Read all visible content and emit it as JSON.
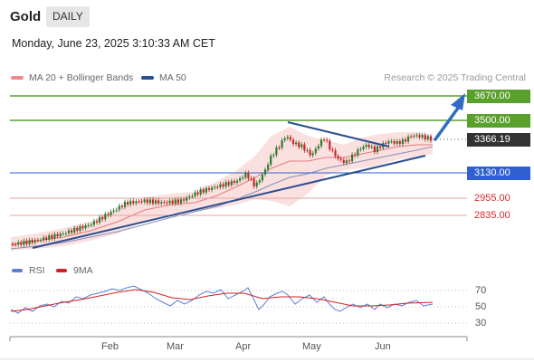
{
  "header": {
    "title": "Gold",
    "timeframe": "DAILY"
  },
  "datetime": "Monday, June 23, 2025 3:10:33 AM CET",
  "legend": {
    "ma20": {
      "label": "MA 20 + Bollinger Bands",
      "color": "#f08a8a"
    },
    "ma50": {
      "label": "MA 50",
      "color": "#2b4f8f"
    }
  },
  "research": "Research © 2025 Trading Central",
  "levels": {
    "r2": "3670.00",
    "r1": "3500.00",
    "last": "3366.19",
    "s1": "3130.00",
    "s2": "2955.00",
    "s3": "2835.00"
  },
  "rsi_legend": {
    "rsi": {
      "label": "RSI",
      "color": "#5b7fd6"
    },
    "ma9": {
      "label": "9MA",
      "color": "#d42020"
    }
  },
  "rsi_ticks": {
    "t70": "70",
    "t50": "50",
    "t30": "30"
  },
  "months": {
    "feb": "Feb",
    "mar": "Mar",
    "apr": "Apr",
    "may": "May",
    "jun": "Jun"
  },
  "colors": {
    "green_level": "#5aa02c",
    "blue_level": "#2f5fd0",
    "red_level": "#e8a0a0",
    "candle_up": "#2e7d32",
    "candle_down": "#c62828",
    "trend": "#2b4f8f",
    "arrow": "#2e6dc2"
  }
}
